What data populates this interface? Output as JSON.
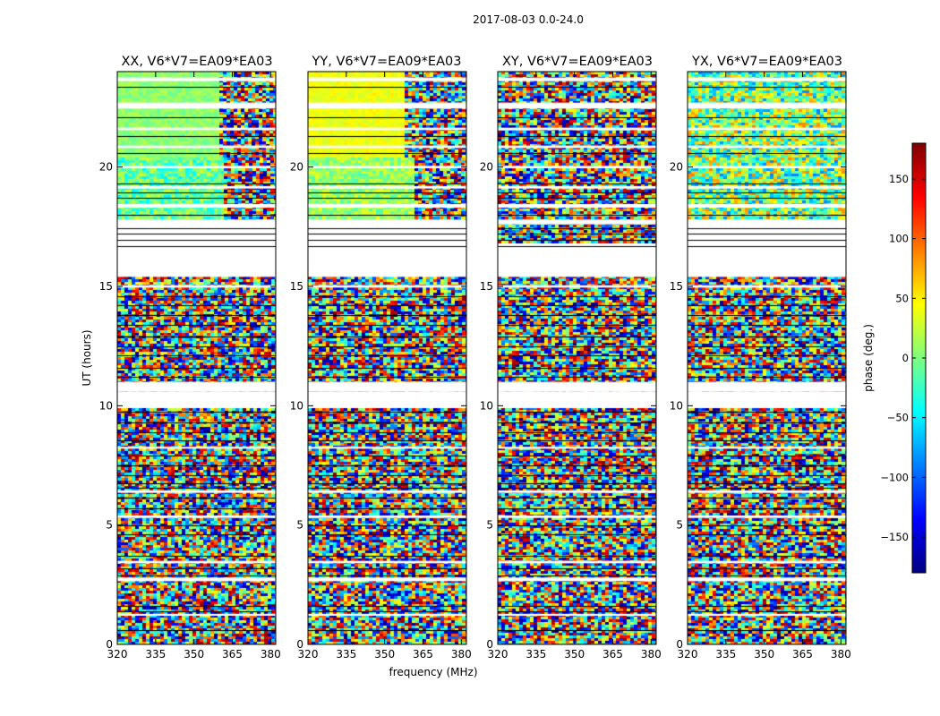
{
  "chart_data": {
    "type": "heatmap",
    "suptitle": "2017-08-03 0.0-24.0",
    "xlabel": "frequency (MHz)",
    "ylabel": "UT (hours)",
    "xlim": [
      320,
      382
    ],
    "ylim": [
      0,
      24
    ],
    "xticks": [
      320,
      335,
      350,
      365,
      380
    ],
    "yticks": [
      0,
      5,
      10,
      15,
      20
    ],
    "colorbar": {
      "label": "phase (deg.)",
      "range": [
        -180,
        180
      ],
      "ticks": [
        -150,
        -100,
        -50,
        0,
        50,
        100,
        150
      ],
      "colormap": "jet",
      "colors": [
        "#00007f",
        "#0000ff",
        "#007fff",
        "#00ffff",
        "#7fff7f",
        "#ffff00",
        "#ff7f00",
        "#ff0000",
        "#7f0000"
      ]
    },
    "panels": [
      {
        "title": "XX, V6*V7=EA09*EA03",
        "regions": [
          {
            "t0": 20.4,
            "t1": 24.0,
            "f0": 320,
            "f1": 360,
            "phase": 5,
            "noise": 15
          },
          {
            "t0": 20.4,
            "t1": 24.0,
            "f0": 360,
            "f1": 382,
            "phase": 0,
            "noise": 180
          },
          {
            "t0": 17.8,
            "t1": 20.4,
            "f0": 320,
            "f1": 362,
            "phase": -10,
            "noise": 40
          },
          {
            "t0": 17.8,
            "t1": 20.4,
            "f0": 362,
            "f1": 382,
            "phase": 0,
            "noise": 180
          },
          {
            "t0": 10.6,
            "t1": 11.0,
            "f0": 320,
            "f1": 382,
            "phase": -5,
            "noise": 15
          },
          {
            "t0": 10.6,
            "t1": 15.4,
            "f0": 320,
            "f1": 382,
            "phase": 0,
            "noise": 180
          },
          {
            "t0": 2.8,
            "t1": 3.4,
            "f0": 320,
            "f1": 382,
            "phase": -10,
            "noise": 15
          },
          {
            "t0": 0.0,
            "t1": 10.0,
            "f0": 320,
            "f1": 382,
            "phase": 0,
            "noise": 180
          }
        ]
      },
      {
        "title": "YY, V6*V7=EA09*EA03",
        "regions": [
          {
            "t0": 20.4,
            "t1": 24.0,
            "f0": 320,
            "f1": 358,
            "phase": 40,
            "noise": 12
          },
          {
            "t0": 20.4,
            "t1": 24.0,
            "f0": 358,
            "f1": 382,
            "phase": 0,
            "noise": 180
          },
          {
            "t0": 17.8,
            "t1": 20.4,
            "f0": 320,
            "f1": 362,
            "phase": 10,
            "noise": 30
          },
          {
            "t0": 17.8,
            "t1": 20.4,
            "f0": 362,
            "f1": 382,
            "phase": 0,
            "noise": 180
          },
          {
            "t0": 10.6,
            "t1": 11.0,
            "f0": 320,
            "f1": 382,
            "phase": -5,
            "noise": 15
          },
          {
            "t0": 10.6,
            "t1": 15.4,
            "f0": 320,
            "f1": 382,
            "phase": 0,
            "noise": 180
          },
          {
            "t0": 2.8,
            "t1": 3.4,
            "f0": 320,
            "f1": 382,
            "phase": -5,
            "noise": 15
          },
          {
            "t0": 0.0,
            "t1": 10.0,
            "f0": 320,
            "f1": 382,
            "phase": 0,
            "noise": 180
          }
        ]
      },
      {
        "title": "XY, V6*V7=EA09*EA03",
        "regions": [
          {
            "t0": 0.0,
            "t1": 24.0,
            "f0": 320,
            "f1": 382,
            "phase": 0,
            "noise": 180
          }
        ]
      },
      {
        "title": "YX, V6*V7=EA09*EA03",
        "regions": [
          {
            "t0": 17.8,
            "t1": 24.0,
            "f0": 320,
            "f1": 382,
            "phase": 0,
            "noise": 90
          },
          {
            "t0": 0.0,
            "t1": 15.4,
            "f0": 320,
            "f1": 382,
            "phase": 0,
            "noise": 180
          }
        ]
      }
    ],
    "time_gaps_hours": [
      [
        23.6,
        23.75
      ],
      [
        22.45,
        22.7
      ],
      [
        21.55,
        21.65
      ],
      [
        20.8,
        20.9
      ],
      [
        19.95,
        20.05
      ],
      [
        19.1,
        19.2
      ],
      [
        18.3,
        18.45
      ],
      [
        17.6,
        17.8
      ],
      [
        15.4,
        16.8
      ],
      [
        14.95,
        15.05
      ],
      [
        11.0,
        10.6
      ],
      [
        10.6,
        9.9
      ],
      [
        8.2,
        8.28
      ],
      [
        6.35,
        6.45
      ],
      [
        5.3,
        5.4
      ],
      [
        3.4,
        3.5
      ],
      [
        2.65,
        2.8
      ],
      [
        1.2,
        1.28
      ]
    ],
    "time_lines_hours": [
      23.35,
      22.1,
      21.3,
      20.6,
      19.3,
      18.95,
      18.7,
      18.0,
      17.45,
      17.2,
      16.95,
      16.7,
      14.6,
      14.2,
      13.8,
      13.4,
      12.9,
      12.5,
      12.1,
      11.6,
      11.2,
      9.75,
      9.3,
      8.9,
      8.55,
      7.9,
      7.5,
      7.1,
      6.75,
      6.55,
      6.15,
      5.7,
      5.0,
      4.6,
      3.7,
      3.2,
      2.9,
      1.6,
      1.4,
      0.6
    ]
  }
}
